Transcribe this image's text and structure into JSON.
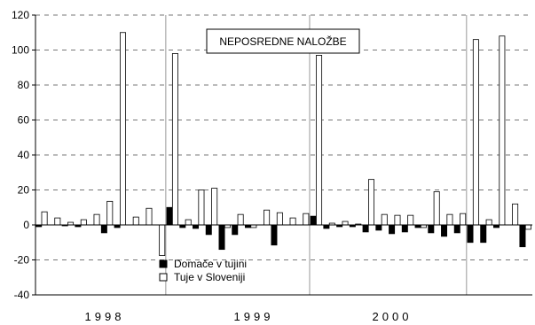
{
  "chart_data": {
    "type": "bar",
    "title": "NEPOSREDNE NALOŽBE",
    "xlabel": "",
    "ylabel": "",
    "ylim": [
      -40,
      120
    ],
    "yticks": [
      -40,
      -20,
      0,
      20,
      40,
      60,
      80,
      100,
      120
    ],
    "year_labels": [
      "1998",
      "1999",
      "2000"
    ],
    "grid": "dashed horizontal",
    "legend_position": "bottom-center",
    "series": [
      {
        "name": "Domače v tujini",
        "color": "#000000",
        "values": [
          -1,
          0,
          -0.5,
          -1,
          0,
          -4.5,
          -1.5,
          0,
          0,
          0,
          10,
          -1.5,
          -2,
          -5.5,
          -14,
          -5.5,
          -1.5,
          0,
          -11.5,
          0,
          0,
          5,
          -2,
          -1,
          -1,
          -4,
          -3,
          -5,
          -4,
          -1.5,
          -4.5,
          -6.5,
          -4.5,
          -10,
          -10,
          -1.5,
          0,
          -12.5
        ]
      },
      {
        "name": "Tuje v Sloveniji",
        "color": "#ffffff",
        "values": [
          7.5,
          4,
          1.5,
          3,
          6,
          13.5,
          110,
          4.5,
          9.5,
          -17.5,
          98,
          3,
          20,
          21,
          -1.5,
          6,
          -1.5,
          8.5,
          7,
          4,
          6.5,
          97,
          1,
          2,
          0.5,
          26,
          6,
          5.5,
          5.5,
          -1.5,
          19,
          6,
          6.5,
          106,
          3,
          108,
          12,
          -2.5
        ]
      }
    ]
  }
}
